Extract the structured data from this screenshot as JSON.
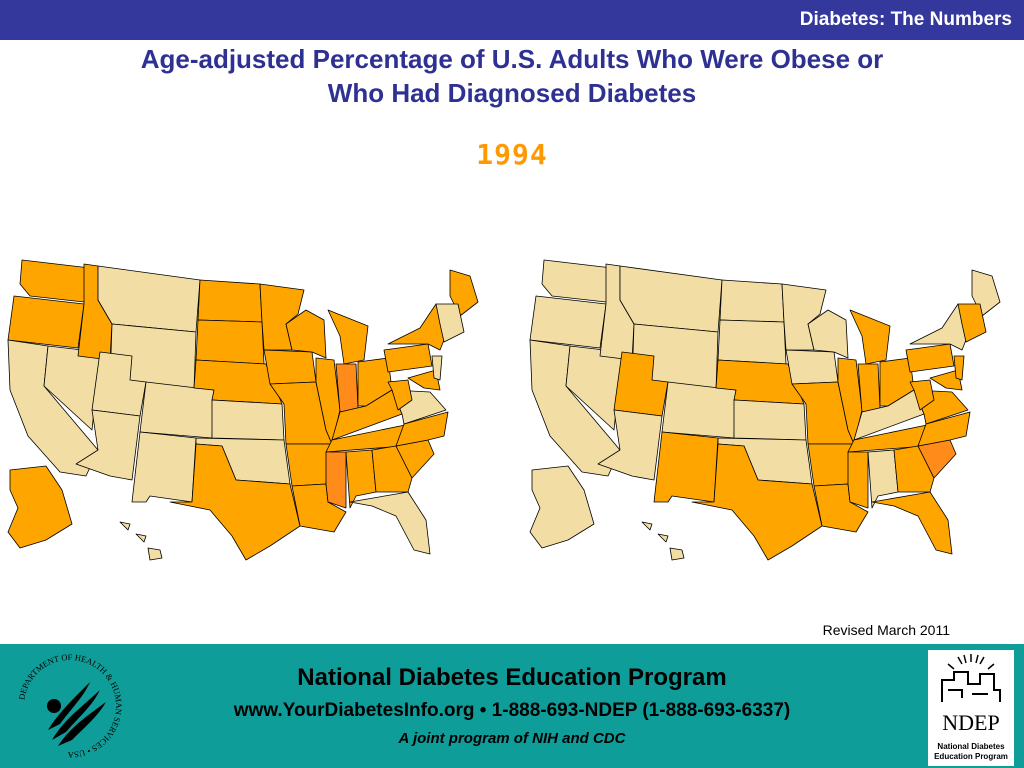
{
  "header": {
    "title": "Diabetes: The Numbers"
  },
  "slide": {
    "title_line1": "Age-adjusted Percentage of U.S. Adults Who Were Obese or",
    "title_line2": "Who Had Diagnosed Diabetes",
    "year": "1994",
    "revised": "Revised March 2011"
  },
  "colors": {
    "header_bg": "#34379b",
    "title": "#2f3192",
    "year": "#ff9900",
    "footer_bg": "#0f9d9a",
    "state_light": "#f2dda4",
    "state_mid": "#ffa500",
    "state_dark": "#ff8c1a",
    "state_border": "#000000"
  },
  "maps": [
    {
      "name": "obesity",
      "states": {
        "WA": "mid",
        "OR": "mid",
        "CA": "light",
        "NV": "light",
        "ID": "mid",
        "MT": "light",
        "WY": "light",
        "UT": "light",
        "AZ": "light",
        "CO": "light",
        "NM": "light",
        "ND": "mid",
        "SD": "mid",
        "NE": "mid",
        "KS": "light",
        "OK": "light",
        "TX": "mid",
        "MN": "mid",
        "IA": "mid",
        "MO": "mid",
        "AR": "mid",
        "LA": "mid",
        "WI": "mid",
        "IL": "mid",
        "MI": "mid",
        "IN": "dark",
        "OH": "mid",
        "KY": "mid",
        "TN": "mid",
        "MS": "dark",
        "AL": "mid",
        "GA": "mid",
        "FL": "light",
        "SC": "mid",
        "NC": "mid",
        "VA": "light",
        "WV": "mid",
        "PA": "mid",
        "NY": "mid",
        "ME": "mid",
        "NE_ENG": "light",
        "MD": "mid",
        "NJ": "light",
        "AK": "mid",
        "HI": "light"
      }
    },
    {
      "name": "diabetes",
      "states": {
        "WA": "light",
        "OR": "light",
        "CA": "light",
        "NV": "light",
        "ID": "light",
        "MT": "light",
        "WY": "light",
        "UT": "mid",
        "AZ": "light",
        "CO": "light",
        "NM": "mid",
        "ND": "light",
        "SD": "light",
        "NE": "mid",
        "KS": "light",
        "OK": "light",
        "TX": "mid",
        "MN": "light",
        "IA": "light",
        "MO": "mid",
        "AR": "mid",
        "LA": "mid",
        "WI": "light",
        "IL": "mid",
        "MI": "mid",
        "IN": "mid",
        "OH": "mid",
        "KY": "light",
        "TN": "mid",
        "MS": "mid",
        "AL": "light",
        "GA": "mid",
        "FL": "mid",
        "SC": "dark",
        "NC": "mid",
        "VA": "mid",
        "WV": "mid",
        "PA": "mid",
        "NY": "light",
        "ME": "light",
        "NE_ENG": "mid",
        "MD": "mid",
        "NJ": "mid",
        "AK": "light",
        "HI": "light"
      }
    }
  ],
  "footer": {
    "org": "National Diabetes Education Program",
    "contact": "www.YourDiabetesInfo.org • 1-888-693-NDEP (1-888-693-6337)",
    "joint": "A joint program of NIH and CDC",
    "hhs_seal_text": "DEPARTMENT OF HEALTH & HUMAN SERVICES • USA",
    "ndep_logo_text": "NDEP",
    "ndep_logo_sub1": "National Diabetes",
    "ndep_logo_sub2": "Education Program"
  }
}
